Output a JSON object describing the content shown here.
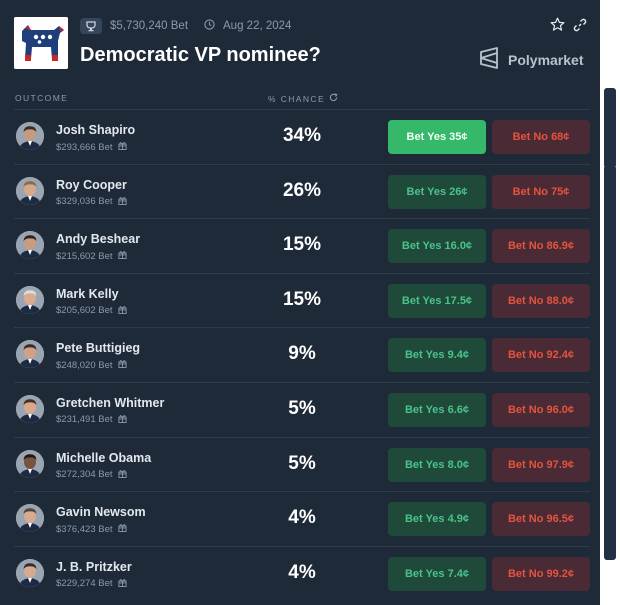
{
  "header": {
    "volume": "$5,730,240 Bet",
    "date": "Aug 22, 2024",
    "title": "Democratic VP nominee?",
    "brand": "Polymarket"
  },
  "table": {
    "col_outcome": "OUTCOME",
    "col_chance": "% CHANCE",
    "rows": [
      {
        "name": "Josh Shapiro",
        "volume": "$293,666 Bet",
        "chance": "34%",
        "yes": "Bet Yes 35¢",
        "no": "Bet No 68¢",
        "yes_selected": true,
        "skin": "#c49a82",
        "hair": "#3a2c22"
      },
      {
        "name": "Roy Cooper",
        "volume": "$329,036 Bet",
        "chance": "26%",
        "yes": "Bet Yes 26¢",
        "no": "Bet No 75¢",
        "yes_selected": false,
        "skin": "#d6a98a",
        "hair": "#8a6b4e"
      },
      {
        "name": "Andy Beshear",
        "volume": "$215,602 Bet",
        "chance": "15%",
        "yes": "Bet Yes 16.0¢",
        "no": "Bet No 86.9¢",
        "yes_selected": false,
        "skin": "#c99b80",
        "hair": "#2d2522"
      },
      {
        "name": "Mark Kelly",
        "volume": "$205,602 Bet",
        "chance": "15%",
        "yes": "Bet Yes 17.5¢",
        "no": "Bet No 88.0¢",
        "yes_selected": false,
        "skin": "#d9ab90",
        "hair": "#dcdcdc"
      },
      {
        "name": "Pete Buttigieg",
        "volume": "$248,020 Bet",
        "chance": "9%",
        "yes": "Bet Yes 9.4¢",
        "no": "Bet No 92.4¢",
        "yes_selected": false,
        "skin": "#d2a086",
        "hair": "#3d2b22"
      },
      {
        "name": "Gretchen Whitmer",
        "volume": "$231,491 Bet",
        "chance": "5%",
        "yes": "Bet Yes 6.6¢",
        "no": "Bet No 96.0¢",
        "yes_selected": false,
        "skin": "#d8a88c",
        "hair": "#4a2f24"
      },
      {
        "name": "Michelle Obama",
        "volume": "$272,304 Bet",
        "chance": "5%",
        "yes": "Bet Yes 8.0¢",
        "no": "Bet No 97.9¢",
        "yes_selected": false,
        "skin": "#7a5240",
        "hair": "#1e1816"
      },
      {
        "name": "Gavin Newsom",
        "volume": "$376,423 Bet",
        "chance": "4%",
        "yes": "Bet Yes 4.9¢",
        "no": "Bet No 96.5¢",
        "yes_selected": false,
        "skin": "#d7ab8f",
        "hair": "#54463d"
      },
      {
        "name": "J. B. Pritzker",
        "volume": "$229,274 Bet",
        "chance": "4%",
        "yes": "Bet Yes 7.4¢",
        "no": "Bet No 99.2¢",
        "yes_selected": false,
        "skin": "#d8a98e",
        "hair": "#34302e"
      }
    ]
  },
  "colors": {
    "background": "#1f2a38",
    "yes_bg": "#1f4a3a",
    "yes_text": "#4bc28a",
    "yes_selected_bg": "#36b86a",
    "no_bg": "#4a2a34",
    "no_text": "#e5533f"
  },
  "icons": [
    "trophy-icon",
    "clock-icon",
    "star-icon",
    "link-icon",
    "refresh-icon",
    "polymarket-logo-icon",
    "gift-icon",
    "democratic-donkey-logo"
  ]
}
